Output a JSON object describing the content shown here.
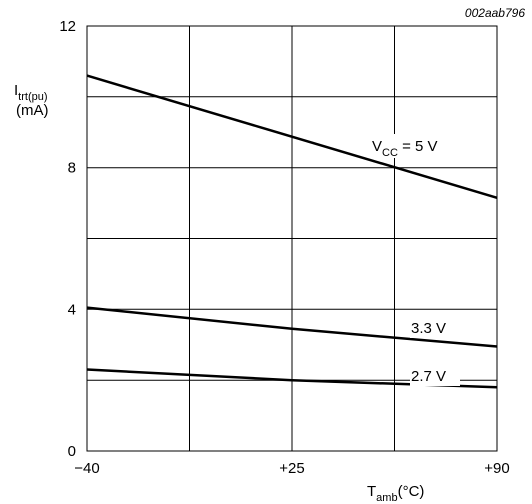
{
  "figure_id": "002aab796",
  "chart_data": {
    "type": "line",
    "ylabel": {
      "main": "I",
      "sub": "trt(pu)",
      "unit": "(mA)"
    },
    "xlabel": {
      "main": "T",
      "sub": "amb",
      "unit": "(°C)"
    },
    "xlim": [
      -40,
      90
    ],
    "ylim": [
      0,
      12
    ],
    "x_ticks": [
      -40,
      25,
      90
    ],
    "x_tick_labels": [
      "−40",
      "+25",
      "+90"
    ],
    "x_grid": [
      -40,
      -7.5,
      25,
      57.5,
      90
    ],
    "y_ticks": [
      0,
      4,
      8,
      12
    ],
    "y_tick_labels": [
      "0",
      "4",
      "8",
      "12"
    ],
    "y_grid": [
      0,
      2,
      4,
      6,
      8,
      10,
      12
    ],
    "grid": true,
    "series": [
      {
        "name": "VCC = 5 V",
        "label": {
          "main": "V",
          "sub": "CC",
          "rest": " = 5 V"
        },
        "x": [
          -40,
          90
        ],
        "y": [
          10.6,
          7.15
        ]
      },
      {
        "name": "3.3 V",
        "label": {
          "main": "3.3 V",
          "sub": "",
          "rest": ""
        },
        "x": [
          -40,
          25,
          90
        ],
        "y": [
          4.05,
          3.45,
          2.95
        ]
      },
      {
        "name": "2.7 V",
        "label": {
          "main": "2.7 V",
          "sub": "",
          "rest": ""
        },
        "x": [
          -40,
          25,
          90
        ],
        "y": [
          2.3,
          2.0,
          1.8
        ]
      }
    ]
  }
}
